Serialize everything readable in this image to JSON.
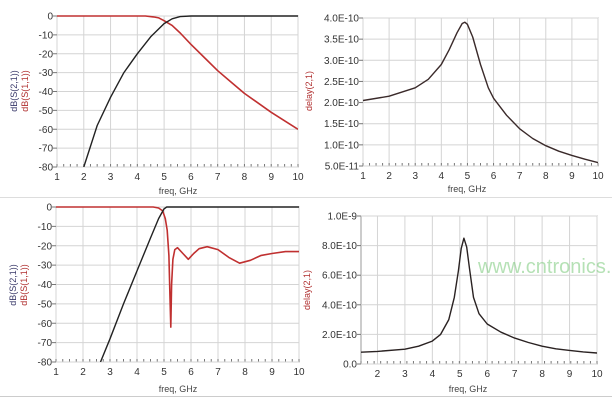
{
  "chart_data": [
    {
      "type": "line",
      "xlabel": "freq, GHz",
      "ylabels": [
        {
          "text": "dB(S(2,1))",
          "color": "#3a3a6a"
        },
        {
          "text": "dB(S(1,1))",
          "color": "#b03030"
        }
      ],
      "xlim": [
        1,
        10
      ],
      "ylim": [
        -80,
        0
      ],
      "xticks": [
        1,
        2,
        3,
        4,
        5,
        6,
        7,
        8,
        9,
        10
      ],
      "xtick_labels": [
        "1",
        "2",
        "3",
        "4",
        "5",
        "6",
        "7",
        "8",
        "9",
        "10"
      ],
      "yticks": [
        0,
        -10,
        -20,
        -30,
        -40,
        -50,
        -60,
        -70,
        -80
      ],
      "ytick_labels": [
        "0",
        "-10",
        "-20",
        "-30",
        "-40",
        "-50",
        "-60",
        "-70",
        "-80"
      ],
      "grid": true,
      "series": [
        {
          "name": "dB(S(2,1))",
          "color": "#222222",
          "x": [
            2,
            2.5,
            3,
            3.5,
            4,
            4.5,
            5,
            5.3,
            5.6,
            6,
            10
          ],
          "y": [
            -80,
            -58,
            -43,
            -30,
            -20,
            -11,
            -4,
            -1.5,
            -0.3,
            0,
            0
          ]
        },
        {
          "name": "dB(S(1,1))",
          "color": "#c03030",
          "x": [
            1,
            4.3,
            4.6,
            4.8,
            5,
            5.3,
            5.6,
            6,
            6.5,
            7,
            7.5,
            8,
            8.5,
            9,
            9.5,
            10
          ],
          "y": [
            0,
            0,
            -0.5,
            -1,
            -2.5,
            -5,
            -9,
            -15,
            -22,
            -29,
            -35,
            -41,
            -46,
            -51,
            -55.5,
            -60
          ]
        }
      ]
    },
    {
      "type": "line",
      "xlabel": "freq, GHz",
      "ylabels": [
        {
          "text": "delay(2,1)",
          "color": "#b03030"
        }
      ],
      "xlim": [
        1,
        10
      ],
      "ylim": [
        5e-11,
        4e-10
      ],
      "xticks": [
        1,
        2,
        3,
        4,
        5,
        6,
        7,
        8,
        9,
        10
      ],
      "xtick_labels": [
        "1",
        "2",
        "3",
        "4",
        "5",
        "6",
        "7",
        "8",
        "9",
        "10"
      ],
      "yticks": [
        4e-10,
        3.5e-10,
        3e-10,
        2.5e-10,
        2e-10,
        1.5e-10,
        1e-10,
        5e-11
      ],
      "ytick_labels": [
        "4.0E-10",
        "3.5E-10",
        "3.0E-10",
        "2.5E-10",
        "2.0E-10",
        "1.5E-10",
        "1.0E-10",
        "5.0E-11"
      ],
      "grid": true,
      "series": [
        {
          "name": "delay(2,1)",
          "color": "#3a2a2a",
          "x": [
            1,
            2,
            3,
            3.5,
            4,
            4.3,
            4.6,
            4.8,
            4.9,
            5.0,
            5.2,
            5.5,
            5.8,
            6,
            6.5,
            7,
            7.5,
            8,
            8.5,
            9,
            9.5,
            10
          ],
          "y": [
            2.05e-10,
            2.15e-10,
            2.35e-10,
            2.55e-10,
            2.9e-10,
            3.25e-10,
            3.65e-10,
            3.87e-10,
            3.9e-10,
            3.85e-10,
            3.55e-10,
            2.9e-10,
            2.35e-10,
            2.1e-10,
            1.7e-10,
            1.38e-10,
            1.15e-10,
            9.8e-11,
            8.5e-11,
            7.5e-11,
            6.6e-11,
            5.8e-11
          ]
        }
      ]
    },
    {
      "type": "line",
      "xlabel": "freq, GHz",
      "ylabels": [
        {
          "text": "dB(S(2,1))",
          "color": "#3a3a6a"
        },
        {
          "text": "dB(S(1,1))",
          "color": "#b03030"
        }
      ],
      "xlim": [
        1,
        10
      ],
      "ylim": [
        -80,
        0
      ],
      "xticks": [
        1,
        2,
        3,
        4,
        5,
        6,
        7,
        8,
        9,
        10
      ],
      "xtick_labels": [
        "1",
        "2",
        "3",
        "4",
        "5",
        "6",
        "7",
        "8",
        "9",
        "10"
      ],
      "yticks": [
        0,
        -10,
        -20,
        -30,
        -40,
        -50,
        -60,
        -70,
        -80
      ],
      "ytick_labels": [
        "0",
        "-10",
        "-20",
        "-30",
        "-40",
        "-50",
        "-60",
        "-70",
        "-80"
      ],
      "grid": true,
      "series": [
        {
          "name": "dB(S(2,1))",
          "color": "#222222",
          "x": [
            2.65,
            3,
            3.5,
            4,
            4.5,
            4.8,
            5,
            5.1,
            10
          ],
          "y": [
            -80,
            -68,
            -50,
            -33,
            -16,
            -6,
            -1,
            0,
            0
          ]
        },
        {
          "name": "dB(S(1,1))",
          "color": "#c03030",
          "x": [
            1,
            4.6,
            4.8,
            4.95,
            5.05,
            5.12,
            5.18,
            5.22,
            5.25,
            5.28,
            5.33,
            5.4,
            5.5,
            5.7,
            5.9,
            6.1,
            6.3,
            6.6,
            7,
            7.4,
            7.8,
            8.2,
            8.6,
            9,
            9.5,
            10
          ],
          "y": [
            0,
            0,
            -0.5,
            -2,
            -6,
            -12,
            -25,
            -45,
            -62,
            -40,
            -27,
            -22,
            -21,
            -24,
            -27,
            -24,
            -21.5,
            -20.5,
            -22,
            -26,
            -29,
            -27.5,
            -25,
            -24,
            -23,
            -23
          ]
        }
      ]
    },
    {
      "type": "line",
      "xlabel": "freq, GHz",
      "ylabels": [
        {
          "text": "delay(2,1)",
          "color": "#b03030"
        }
      ],
      "xlim": [
        1.4,
        10
      ],
      "ylim": [
        0,
        1e-09
      ],
      "xticks": [
        2,
        3,
        4,
        5,
        6,
        7,
        8,
        9,
        10
      ],
      "xtick_labels": [
        "2",
        "3",
        "4",
        "5",
        "6",
        "7",
        "8",
        "9",
        "10"
      ],
      "yticks": [
        1e-09,
        8e-10,
        6e-10,
        4e-10,
        2e-10,
        0
      ],
      "ytick_labels": [
        "1.0E-9",
        "8.0E-10",
        "6.0E-10",
        "4.0E-10",
        "2.0E-10",
        "0.0"
      ],
      "grid": true,
      "series": [
        {
          "name": "delay(2,1)",
          "color": "#2a2222",
          "x": [
            1.4,
            2,
            3,
            3.5,
            4,
            4.3,
            4.6,
            4.8,
            4.95,
            5.05,
            5.15,
            5.25,
            5.35,
            5.5,
            5.7,
            6,
            6.5,
            7,
            7.5,
            8,
            8.5,
            9,
            9.5,
            10
          ],
          "y": [
            8e-11,
            8.5e-11,
            1e-10,
            1.2e-10,
            1.55e-10,
            2e-10,
            3e-10,
            4.5e-10,
            6.3e-10,
            7.8e-10,
            8.5e-10,
            7.9e-10,
            6.5e-10,
            4.5e-10,
            3.4e-10,
            2.7e-10,
            2.15e-10,
            1.75e-10,
            1.45e-10,
            1.2e-10,
            1.03e-10,
            9.2e-11,
            8.2e-11,
            7.4e-11
          ]
        }
      ]
    }
  ],
  "watermark": "www.cntronics.com"
}
